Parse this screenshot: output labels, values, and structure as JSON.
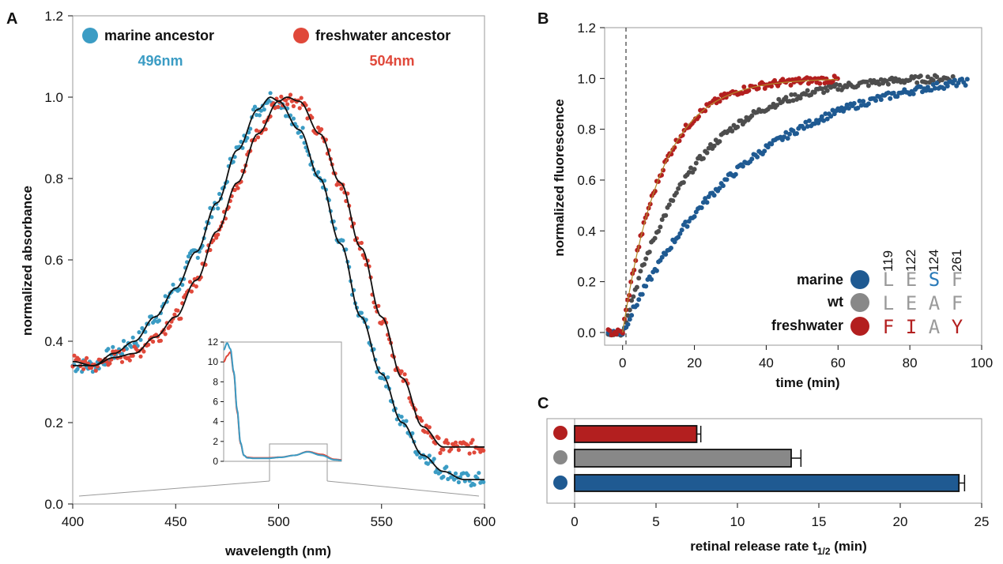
{
  "colors": {
    "marine_A": "#3b9cc4",
    "freshwater_A": "#e0483a",
    "marine_B": "#1f5a92",
    "wt_B": "#4d4d4d",
    "freshwater_B": "#b31f1f",
    "wt_bar": "#888888",
    "seq_gray": "#9a9a9a",
    "highlight_blue": "#2a7ab8"
  },
  "chart_data": [
    {
      "panel": "A",
      "type": "scatter",
      "xlabel": "wavelength (nm)",
      "ylabel": "normalized absorbance",
      "xlim": [
        400,
        600
      ],
      "ylim": [
        0.0,
        1.2
      ],
      "x_ticks": [
        "400",
        "450",
        "500",
        "550",
        "600"
      ],
      "y_ticks": [
        "0.0",
        "0.2",
        "0.4",
        "0.6",
        "0.8",
        "1.0",
        "1.2"
      ],
      "series": [
        {
          "name": "marine ancestor",
          "annotation": "496nm",
          "lambda_max": 496,
          "x": [
            400,
            410,
            420,
            430,
            440,
            450,
            460,
            470,
            480,
            490,
            496,
            500,
            510,
            520,
            530,
            540,
            550,
            560,
            570,
            580,
            590,
            600
          ],
          "y": [
            0.34,
            0.34,
            0.37,
            0.4,
            0.46,
            0.53,
            0.62,
            0.74,
            0.87,
            0.97,
            1.0,
            0.99,
            0.92,
            0.8,
            0.64,
            0.46,
            0.32,
            0.2,
            0.12,
            0.08,
            0.06,
            0.06
          ]
        },
        {
          "name": "freshwater ancestor",
          "annotation": "504nm",
          "lambda_max": 504,
          "x": [
            400,
            410,
            420,
            430,
            440,
            450,
            460,
            470,
            480,
            490,
            500,
            504,
            510,
            520,
            530,
            540,
            550,
            560,
            570,
            580,
            590,
            600
          ],
          "y": [
            0.35,
            0.34,
            0.36,
            0.37,
            0.41,
            0.46,
            0.55,
            0.67,
            0.79,
            0.91,
            0.99,
            1.0,
            0.99,
            0.91,
            0.79,
            0.63,
            0.46,
            0.31,
            0.19,
            0.14,
            0.14,
            0.14
          ]
        }
      ],
      "inset": {
        "type": "line",
        "y_ticks": [
          "0",
          "2",
          "4",
          "6",
          "8",
          "10",
          "12"
        ],
        "ylim": [
          0,
          12
        ],
        "xlim": [
          250,
          600
        ],
        "zoom_range_nm": [
          400,
          600
        ],
        "series": [
          {
            "name": "marine ancestor",
            "x": [
              250,
              260,
              270,
              280,
              290,
              300,
              310,
              320,
              340,
              380,
              420,
              460,
              500,
              540,
              580,
              600
            ],
            "y": [
              11.2,
              11.9,
              11.3,
              9.0,
              5.2,
              1.9,
              0.6,
              0.35,
              0.3,
              0.3,
              0.4,
              0.6,
              0.95,
              0.6,
              0.15,
              0.1
            ]
          },
          {
            "name": "freshwater ancestor",
            "x": [
              250,
              260,
              270,
              280,
              290,
              300,
              310,
              320,
              340,
              380,
              420,
              460,
              500,
              540,
              580,
              600
            ],
            "y": [
              10.0,
              10.6,
              11.0,
              8.9,
              5.0,
              1.8,
              0.6,
              0.4,
              0.35,
              0.35,
              0.42,
              0.6,
              0.98,
              0.7,
              0.2,
              0.15
            ]
          }
        ]
      }
    },
    {
      "panel": "B",
      "type": "scatter",
      "xlabel": "time (min)",
      "ylabel": "normalized fluorescence",
      "xlim": [
        -5,
        100
      ],
      "ylim": [
        -0.05,
        1.2
      ],
      "x_ticks": [
        "0",
        "20",
        "40",
        "60",
        "80",
        "100"
      ],
      "y_ticks": [
        "0.0",
        "0.2",
        "0.4",
        "0.6",
        "0.8",
        "1.0",
        "1.2"
      ],
      "positions": [
        "119",
        "122",
        "124",
        "261"
      ],
      "series": [
        {
          "name": "marine",
          "residues": [
            "L",
            "E",
            "S",
            "F"
          ],
          "t_end": 96,
          "t_half": 23.6
        },
        {
          "name": "wt",
          "residues": [
            "L",
            "E",
            "A",
            "F"
          ],
          "t_end": 92,
          "t_half": 13.3
        },
        {
          "name": "freshwater",
          "residues": [
            "F",
            "I",
            "A",
            "Y"
          ],
          "t_end": 60,
          "t_half": 7.5
        }
      ]
    },
    {
      "panel": "C",
      "type": "bar",
      "orientation": "horizontal",
      "xlabel": "retinal release rate t",
      "xlabel_sub": "1/2",
      "xlabel_unit": " (min)",
      "xlim": [
        0,
        25
      ],
      "x_ticks": [
        "0",
        "5",
        "10",
        "15",
        "20",
        "25"
      ],
      "categories": [
        "freshwater",
        "wt",
        "marine"
      ],
      "values": [
        7.5,
        13.3,
        23.6
      ],
      "errors": [
        0.25,
        0.6,
        0.35
      ]
    }
  ],
  "panel_labels": [
    "A",
    "B",
    "C"
  ],
  "legend_A": {
    "marine": "marine ancestor",
    "marine_peak": "496nm",
    "freshwater": "freshwater ancestor",
    "freshwater_peak": "504nm"
  },
  "legend_B": {
    "marine": "marine",
    "wt": "wt",
    "freshwater": "freshwater"
  }
}
